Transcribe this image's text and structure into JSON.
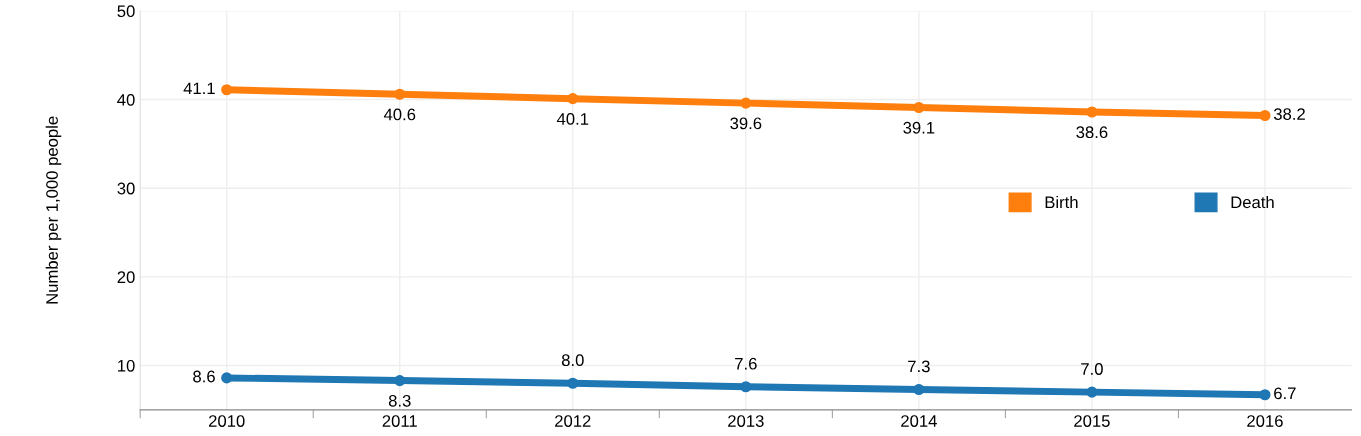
{
  "chart_data": {
    "type": "line",
    "ylabel": "Number per 1,000 people",
    "categories": [
      "2010",
      "2011",
      "2012",
      "2013",
      "2014",
      "2015",
      "2016"
    ],
    "series": [
      {
        "name": "Birth",
        "color": "#ff7f0e",
        "values": [
          41.1,
          40.6,
          40.1,
          39.6,
          39.1,
          38.6,
          38.2
        ],
        "value_labels": [
          "41.1",
          "40.6",
          "40.1",
          "39.6",
          "39.1",
          "38.6",
          "38.2"
        ]
      },
      {
        "name": "Death",
        "color": "#1f77b4",
        "values": [
          8.6,
          8.3,
          8.0,
          7.6,
          7.3,
          7.0,
          6.7
        ],
        "value_labels": [
          "8.6",
          "8.3",
          "8.0",
          "7.6",
          "7.3",
          "7.0",
          "6.7"
        ]
      }
    ],
    "ylim": [
      5,
      50
    ],
    "yticks": [
      10,
      20,
      30,
      40,
      50
    ],
    "grid": true,
    "legend": "right",
    "marker": "circle",
    "line_style": "solid"
  }
}
